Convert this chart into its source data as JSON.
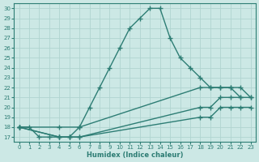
{
  "xlabel": "Humidex (Indice chaleur)",
  "bg_color": "#cce8e5",
  "grid_color": "#b0d4d0",
  "line_color": "#2d7d74",
  "xlim": [
    -0.5,
    23.5
  ],
  "ylim": [
    16.5,
    30.5
  ],
  "xticks": [
    0,
    1,
    2,
    3,
    4,
    5,
    6,
    7,
    8,
    9,
    10,
    11,
    12,
    13,
    14,
    15,
    16,
    17,
    18,
    19,
    20,
    21,
    22,
    23
  ],
  "yticks": [
    17,
    18,
    19,
    20,
    21,
    22,
    23,
    24,
    25,
    26,
    27,
    28,
    29,
    30
  ],
  "series": [
    {
      "x": [
        0,
        1,
        2,
        3,
        4,
        5,
        6,
        7,
        8,
        9,
        10,
        11,
        12,
        13,
        14,
        15,
        16,
        17,
        18,
        19,
        20,
        21,
        22
      ],
      "y": [
        18,
        18,
        17,
        17,
        17,
        17,
        18,
        20,
        22,
        24,
        26,
        28,
        29,
        30,
        30,
        27,
        25,
        24,
        23,
        22,
        22,
        22,
        21
      ],
      "marker": "+",
      "markersize": 4,
      "linewidth": 1.0
    },
    {
      "x": [
        0,
        4,
        6,
        18,
        19,
        20,
        21,
        22,
        23
      ],
      "y": [
        18,
        18,
        18,
        22,
        22,
        22,
        22,
        22,
        21
      ],
      "marker": "+",
      "markersize": 4,
      "linewidth": 1.0
    },
    {
      "x": [
        0,
        4,
        5,
        6,
        18,
        19,
        20,
        21,
        22,
        23
      ],
      "y": [
        18,
        17,
        17,
        17,
        20,
        20,
        21,
        21,
        21,
        21
      ],
      "marker": "+",
      "markersize": 4,
      "linewidth": 1.0
    },
    {
      "x": [
        0,
        4,
        5,
        6,
        18,
        19,
        20,
        21,
        22,
        23
      ],
      "y": [
        18,
        17,
        17,
        17,
        19,
        19,
        20,
        20,
        20,
        20
      ],
      "marker": "+",
      "markersize": 4,
      "linewidth": 1.0
    }
  ]
}
